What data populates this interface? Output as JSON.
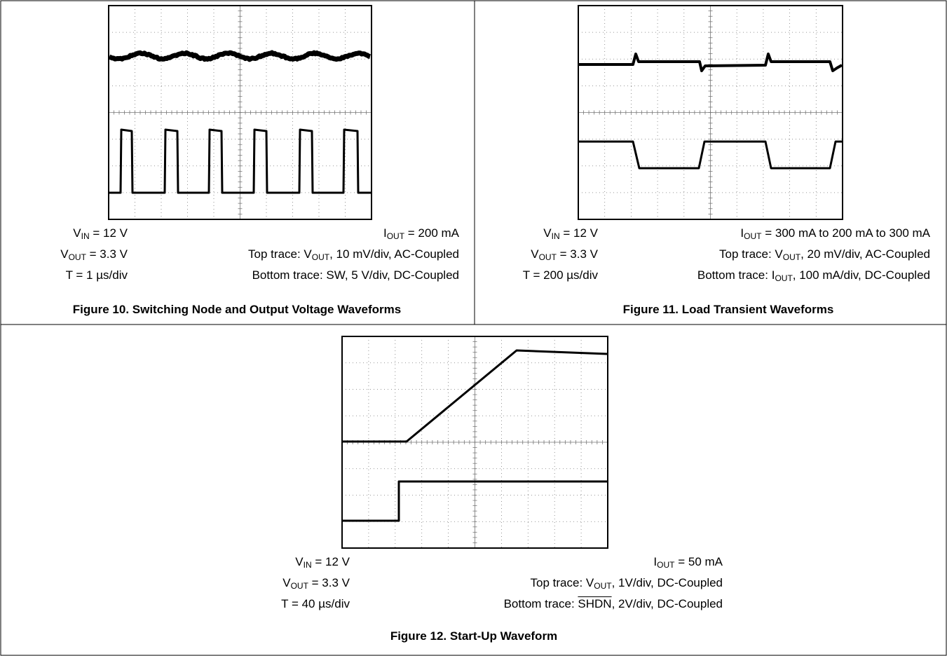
{
  "figures": [
    {
      "left": [
        [
          {
            "text": "V"
          },
          {
            "sub": "IN"
          },
          {
            "text": " = 12 V"
          }
        ],
        [
          {
            "text": "V"
          },
          {
            "sub": "OUT"
          },
          {
            "text": " = 3.3 V"
          }
        ],
        [
          {
            "text": "T = 1 µs/div"
          }
        ]
      ],
      "right": [
        [
          {
            "text": "I"
          },
          {
            "sub": "OUT"
          },
          {
            "text": " = 200 mA"
          }
        ],
        [
          {
            "text": "Top trace: V"
          },
          {
            "sub": "OUT"
          },
          {
            "text": ", 10 mV/div, AC-Coupled"
          }
        ],
        [
          {
            "text": "Bottom trace: SW, 5 V/div, DC-Coupled"
          }
        ]
      ],
      "caption": "Figure 10. Switching Node and Output Voltage Waveforms"
    },
    {
      "left": [
        [
          {
            "text": "V"
          },
          {
            "sub": "IN"
          },
          {
            "text": " = 12 V"
          }
        ],
        [
          {
            "text": "V"
          },
          {
            "sub": "OUT"
          },
          {
            "text": " = 3.3 V"
          }
        ],
        [
          {
            "text": "T = 200 µs/div"
          }
        ]
      ],
      "right": [
        [
          {
            "text": "I"
          },
          {
            "sub": "OUT"
          },
          {
            "text": " = 300 mA to 200 mA to 300 mA"
          }
        ],
        [
          {
            "text": "Top trace: V"
          },
          {
            "sub": "OUT"
          },
          {
            "text": ", 20 mV/div, AC-Coupled"
          }
        ],
        [
          {
            "text": "Bottom trace: I"
          },
          {
            "sub": "OUT"
          },
          {
            "text": ", 100 mA/div, DC-Coupled"
          }
        ]
      ],
      "caption": "Figure 11. Load Transient Waveforms"
    },
    {
      "left": [
        [
          {
            "text": "V"
          },
          {
            "sub": "IN"
          },
          {
            "text": " = 12 V"
          }
        ],
        [
          {
            "text": "V"
          },
          {
            "sub": "OUT"
          },
          {
            "text": " = 3.3 V"
          }
        ],
        [
          {
            "text": "T = 40 µs/div"
          }
        ]
      ],
      "right": [
        [
          {
            "text": "I"
          },
          {
            "sub": "OUT"
          },
          {
            "text": " = 50 mA"
          }
        ],
        [
          {
            "text": "Top trace: V"
          },
          {
            "sub": "OUT"
          },
          {
            "text": ", 1V/div, DC-Coupled"
          }
        ],
        [
          {
            "text": "Bottom trace: "
          },
          {
            "overline": "SHDN"
          },
          {
            "text": ", 2V/div, DC-Coupled"
          }
        ]
      ],
      "caption": "Figure 12. Start-Up Waveform"
    }
  ]
}
